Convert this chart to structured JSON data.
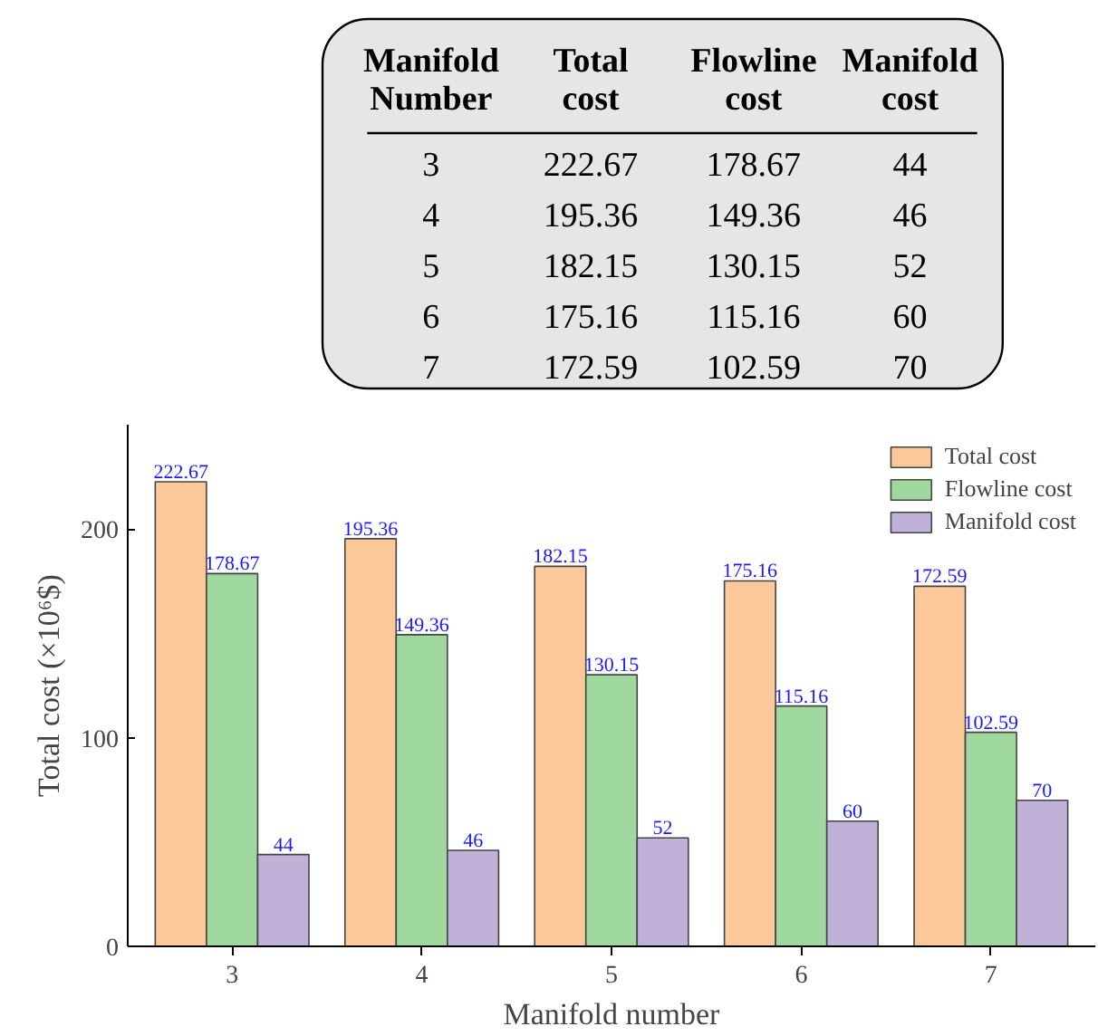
{
  "chart_data": {
    "type": "bar",
    "xlabel": "Manifold number",
    "ylabel": "Total cost (×10⁶$)",
    "categories": [
      "3",
      "4",
      "5",
      "6",
      "7"
    ],
    "series": [
      {
        "name": "Total cost",
        "color": "#fdc99b",
        "values": [
          222.67,
          195.36,
          182.15,
          175.16,
          172.59
        ]
      },
      {
        "name": "Flowline cost",
        "color": "#9fd9a0",
        "values": [
          178.67,
          149.36,
          130.15,
          115.16,
          102.59
        ]
      },
      {
        "name": "Manifold cost",
        "color": "#c0b1d8",
        "values": [
          44,
          46,
          52,
          60,
          70
        ]
      }
    ],
    "annotations": [
      "Manifold Number",
      "222.67",
      "178.67",
      "44",
      "195.36",
      "149.36",
      "46",
      "182.15",
      "130.15",
      "52",
      "175.16",
      "115.16",
      "60",
      "172.59",
      "102.59",
      "70"
    ],
    "ylim": [
      0,
      250
    ],
    "yticks": [
      0,
      100,
      200
    ],
    "grid": false,
    "legend": "top right",
    "data_labels": true
  }
}
